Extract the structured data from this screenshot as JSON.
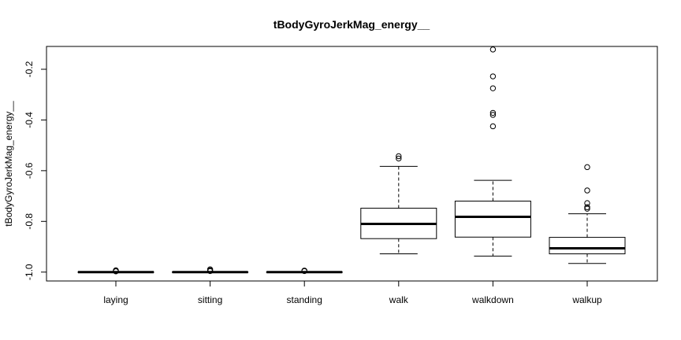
{
  "chart_data": {
    "type": "boxplot",
    "title": "tBodyGyroJerkMag_energy__",
    "xlabel": "",
    "ylabel": "tBodyGyroJerkMag_energy__",
    "ylim": [
      -1.035,
      -0.11
    ],
    "yticks": [
      "-1.0",
      "-0.8",
      "-0.6",
      "-0.4",
      "-0.2"
    ],
    "grid": false,
    "categories": [
      "laying",
      "sitting",
      "standing",
      "walk",
      "walkdown",
      "walkup"
    ],
    "boxes": [
      {
        "name": "laying",
        "min": -1.0,
        "q1": -1.0,
        "median": -1.0,
        "q3": -0.9995,
        "max": -0.999,
        "outliers": [
          -0.993,
          -0.995,
          -0.997
        ]
      },
      {
        "name": "sitting",
        "min": -1.0,
        "q1": -1.0,
        "median": -1.0,
        "q3": -0.9995,
        "max": -0.999,
        "outliers": [
          -0.989,
          -0.993,
          -0.996
        ]
      },
      {
        "name": "standing",
        "min": -1.0,
        "q1": -1.0,
        "median": -1.0,
        "q3": -0.9995,
        "max": -0.999,
        "outliers": [
          -0.994,
          -0.996
        ]
      },
      {
        "name": "walk",
        "min": -0.928,
        "q1": -0.868,
        "median": -0.81,
        "q3": -0.748,
        "max": -0.583,
        "outliers": [
          -0.543,
          -0.552
        ]
      },
      {
        "name": "walkdown",
        "min": -0.937,
        "q1": -0.862,
        "median": -0.782,
        "q3": -0.72,
        "max": -0.638,
        "outliers": [
          -0.122,
          -0.228,
          -0.275,
          -0.372,
          -0.38,
          -0.425
        ]
      },
      {
        "name": "walkup",
        "min": -0.966,
        "q1": -0.928,
        "median": -0.906,
        "q3": -0.863,
        "max": -0.77,
        "outliers": [
          -0.586,
          -0.678,
          -0.728,
          -0.744,
          -0.75
        ]
      }
    ]
  }
}
